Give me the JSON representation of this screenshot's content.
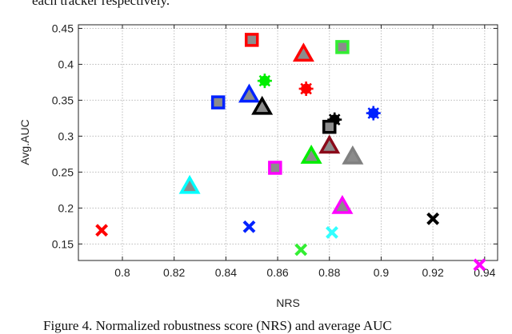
{
  "top_text": "each tracker respectively.",
  "caption": "Figure 4.  Normalized robustness score (NRS) and average AUC",
  "chart_data": {
    "type": "scatter",
    "title": "",
    "xlabel": "NRS",
    "ylabel": "Avg.AUC",
    "xlim": [
      0.783,
      0.945
    ],
    "ylim": [
      0.127,
      0.455
    ],
    "xticks": [
      0.8,
      0.82,
      0.84,
      0.86,
      0.88,
      0.9,
      0.92,
      0.94
    ],
    "xtick_labels": [
      "0.8",
      "0.82",
      "0.84",
      "0.86",
      "0.88",
      "0.9",
      "0.92",
      "0.94"
    ],
    "yticks": [
      0.15,
      0.2,
      0.25,
      0.3,
      0.35,
      0.4,
      0.45
    ],
    "ytick_labels": [
      "0.15",
      "0.2",
      "0.25",
      "0.3",
      "0.35",
      "0.4",
      "0.45"
    ],
    "grid": true,
    "points": [
      {
        "x": 0.85,
        "y": 0.434,
        "marker": "square",
        "color": "#ff0000"
      },
      {
        "x": 0.87,
        "y": 0.414,
        "marker": "triangle",
        "color": "#ff0000"
      },
      {
        "x": 0.885,
        "y": 0.424,
        "marker": "square",
        "color": "#33ee33"
      },
      {
        "x": 0.855,
        "y": 0.377,
        "marker": "star",
        "color": "#00ee00"
      },
      {
        "x": 0.871,
        "y": 0.366,
        "marker": "star",
        "color": "#ff0000"
      },
      {
        "x": 0.837,
        "y": 0.347,
        "marker": "square",
        "color": "#0022ff"
      },
      {
        "x": 0.849,
        "y": 0.357,
        "marker": "triangle",
        "color": "#0022ff"
      },
      {
        "x": 0.854,
        "y": 0.34,
        "marker": "triangle",
        "color": "#000000"
      },
      {
        "x": 0.882,
        "y": 0.323,
        "marker": "star",
        "color": "#000000"
      },
      {
        "x": 0.88,
        "y": 0.313,
        "marker": "square",
        "color": "#000000"
      },
      {
        "x": 0.897,
        "y": 0.332,
        "marker": "star",
        "color": "#0022ff"
      },
      {
        "x": 0.88,
        "y": 0.286,
        "marker": "triangle",
        "color": "#8b0a1a"
      },
      {
        "x": 0.873,
        "y": 0.272,
        "marker": "triangle",
        "color": "#00ee00"
      },
      {
        "x": 0.889,
        "y": 0.271,
        "marker": "triangle",
        "color": "#808080"
      },
      {
        "x": 0.859,
        "y": 0.256,
        "marker": "square",
        "color": "#ff00ff"
      },
      {
        "x": 0.826,
        "y": 0.23,
        "marker": "triangle",
        "color": "#00ffff"
      },
      {
        "x": 0.885,
        "y": 0.202,
        "marker": "triangle",
        "color": "#ff00ff"
      },
      {
        "x": 0.92,
        "y": 0.185,
        "marker": "cross",
        "color": "#000000"
      },
      {
        "x": 0.792,
        "y": 0.169,
        "marker": "cross",
        "color": "#ff0000"
      },
      {
        "x": 0.849,
        "y": 0.174,
        "marker": "cross",
        "color": "#0022ff"
      },
      {
        "x": 0.881,
        "y": 0.166,
        "marker": "cross",
        "color": "#33ffff"
      },
      {
        "x": 0.869,
        "y": 0.142,
        "marker": "cross",
        "color": "#33ee33"
      },
      {
        "x": 0.938,
        "y": 0.121,
        "marker": "cross",
        "color": "#ff00ff"
      }
    ]
  }
}
